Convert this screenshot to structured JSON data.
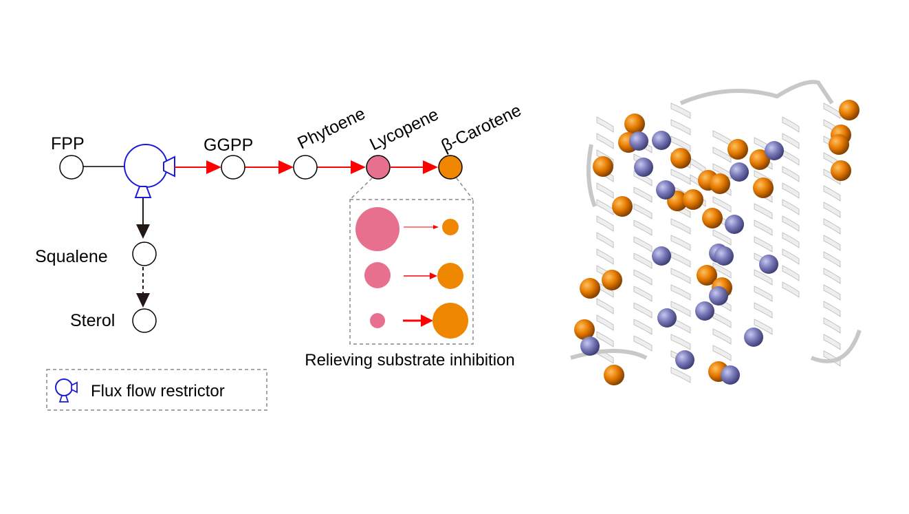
{
  "pathway": {
    "nodes": {
      "fpp": "FPP",
      "ggpp": "GGPP",
      "phytoene": "Phytoene",
      "lycopene": "Lycopene",
      "carotene": "β-Carotene",
      "squalene": "Squalene",
      "sterol": "Sterol"
    },
    "inset_caption": "Relieving substrate inhibition",
    "legend_label": "Flux flow restrictor"
  },
  "colors": {
    "restrictor": "#1a1adb",
    "flux_arrow": "#ff0000",
    "lycopene": "#e8708f",
    "carotene": "#ef8600",
    "sphere_purple": "#7a7ab8",
    "helix": "#e6e6e6"
  },
  "icons": [
    "flux-flow-restrictor-icon"
  ]
}
